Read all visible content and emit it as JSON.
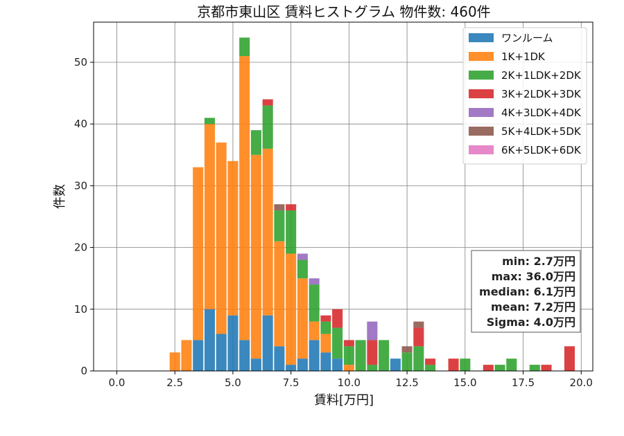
{
  "chart_data": {
    "type": "bar",
    "stacked": true,
    "title": "京都市東山区 賃料ヒストグラム 物件数: 460件",
    "xlabel": "賃料[万円]",
    "ylabel": "件数",
    "xlim": [
      -1.0,
      20.5
    ],
    "ylim": [
      0,
      56.5
    ],
    "xticks": [
      0.0,
      2.5,
      5.0,
      7.5,
      10.0,
      12.5,
      15.0,
      17.5,
      20.0
    ],
    "xtick_labels": [
      "0.0",
      "2.5",
      "5.0",
      "7.5",
      "10.0",
      "12.5",
      "15.0",
      "17.5",
      "20.0"
    ],
    "yticks": [
      0,
      10,
      20,
      30,
      40,
      50
    ],
    "ytick_labels": [
      "0",
      "10",
      "20",
      "30",
      "40",
      "50"
    ],
    "grid": true,
    "legend_position": "top-right",
    "bin_width": 0.5,
    "x": [
      2.5,
      3.0,
      3.5,
      4.0,
      4.5,
      5.0,
      5.5,
      6.0,
      6.5,
      7.0,
      7.5,
      8.0,
      8.5,
      9.0,
      9.5,
      10.0,
      10.5,
      11.0,
      11.5,
      12.0,
      12.5,
      13.0,
      13.5,
      14.0,
      14.5,
      15.0,
      15.5,
      16.0,
      16.5,
      17.0,
      17.5,
      18.0,
      18.5,
      19.0,
      19.5,
      20.0
    ],
    "series": [
      {
        "name": "ワンルーム",
        "color": "#1f77b4",
        "values": [
          0,
          0,
          5,
          10,
          6,
          9,
          5,
          2,
          9,
          4,
          1,
          2,
          5,
          3,
          2,
          0,
          0,
          0,
          0,
          2,
          0,
          0,
          0,
          0,
          0,
          0,
          0,
          0,
          0,
          0,
          0,
          0,
          0,
          0,
          0,
          0
        ]
      },
      {
        "name": "1K+1DK",
        "color": "#ff7f0e",
        "values": [
          3,
          5,
          28,
          30,
          31,
          25,
          46,
          33,
          27,
          17,
          18,
          13,
          3,
          3,
          0,
          1,
          0,
          0,
          0,
          0,
          0,
          0,
          0,
          0,
          0,
          0,
          0,
          0,
          0,
          0,
          0,
          0,
          0,
          0,
          0,
          0
        ]
      },
      {
        "name": "2K+1LDK+2DK",
        "color": "#2ca02c",
        "values": [
          0,
          0,
          0,
          1,
          0,
          0,
          3,
          4,
          7,
          5,
          7,
          3,
          6,
          2,
          5,
          3,
          5,
          1,
          5,
          0,
          3,
          4,
          1,
          0,
          0,
          2,
          0,
          0,
          1,
          2,
          0,
          1,
          0,
          0,
          0,
          0
        ]
      },
      {
        "name": "3K+2LDK+3DK",
        "color": "#d62728",
        "values": [
          0,
          0,
          0,
          0,
          0,
          0,
          0,
          0,
          1,
          0,
          1,
          0,
          0,
          1,
          3,
          1,
          0,
          4,
          0,
          0,
          0,
          3,
          1,
          0,
          2,
          0,
          0,
          1,
          0,
          0,
          0,
          0,
          1,
          0,
          4,
          0
        ]
      },
      {
        "name": "4K+3LDK+4DK",
        "color": "#9467bd",
        "values": [
          0,
          0,
          0,
          0,
          0,
          0,
          0,
          0,
          0,
          0,
          0,
          1,
          1,
          0,
          0,
          0,
          0,
          3,
          0,
          0,
          0,
          0,
          0,
          0,
          0,
          0,
          0,
          0,
          0,
          0,
          0,
          0,
          0,
          0,
          0,
          0
        ]
      },
      {
        "name": "5K+4LDK+5DK",
        "color": "#8c564b",
        "values": [
          0,
          0,
          0,
          0,
          0,
          0,
          0,
          0,
          0,
          1,
          0,
          0,
          0,
          0,
          0,
          0,
          0,
          0,
          0,
          0,
          1,
          1,
          0,
          0,
          0,
          0,
          0,
          0,
          0,
          0,
          0,
          0,
          0,
          0,
          0,
          0
        ]
      },
      {
        "name": "6K+5LDK+6DK",
        "color": "#e377c2",
        "values": [
          0,
          0,
          0,
          0,
          0,
          0,
          0,
          0,
          0,
          0,
          0,
          0,
          0,
          0,
          0,
          0,
          0,
          0,
          0,
          0,
          0,
          0,
          0,
          0,
          0,
          0,
          0,
          0,
          0,
          0,
          0,
          0,
          0,
          0,
          0,
          0
        ]
      }
    ],
    "annotations": [
      "min: 2.7万円",
      "max: 36.0万円",
      "median: 6.1万円",
      "mean: 7.2万円",
      "Sigma: 4.0万円"
    ]
  }
}
